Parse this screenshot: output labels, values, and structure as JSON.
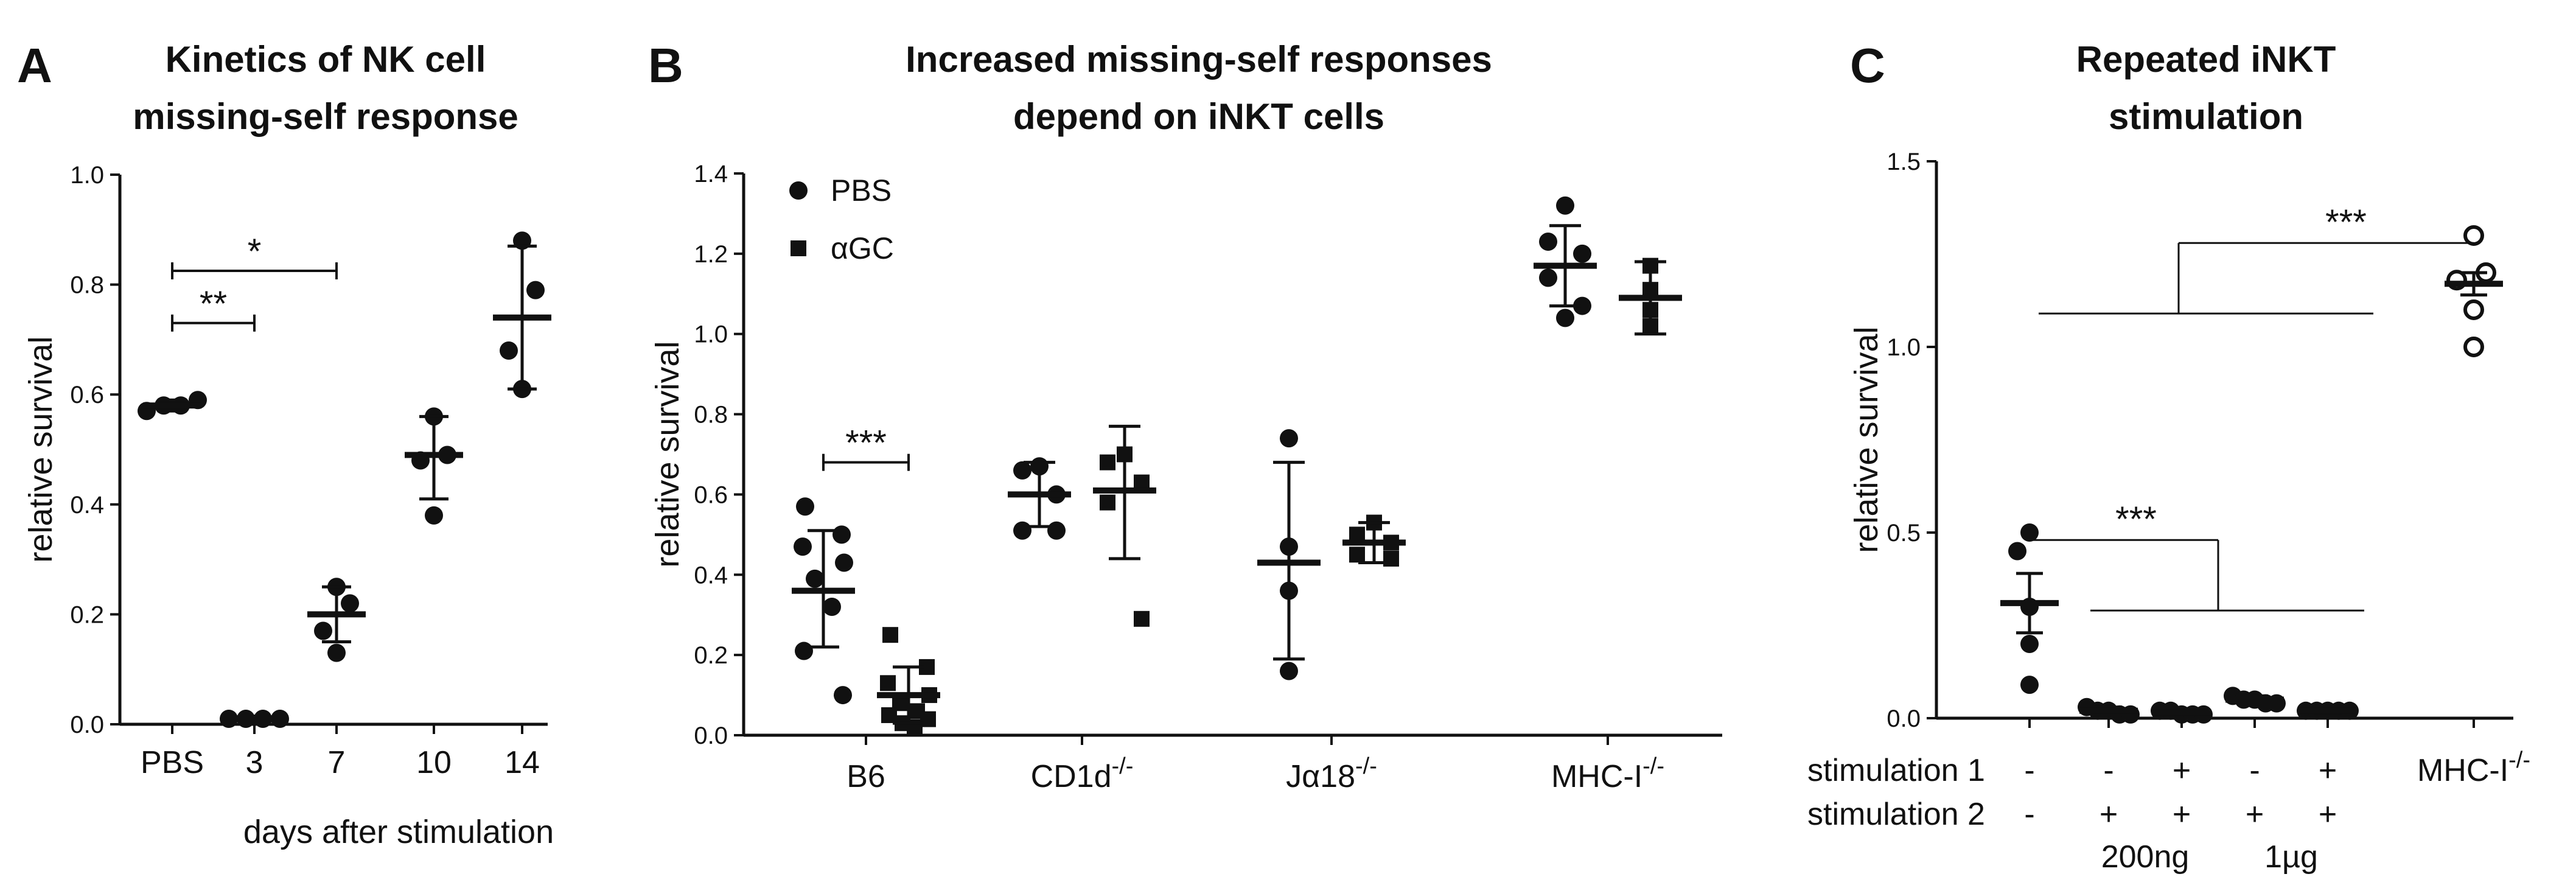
{
  "chart_data": [
    {
      "panel": "A",
      "type": "scatter",
      "title": [
        "Kinetics of NK cell",
        "missing-self response"
      ],
      "xlabel": "days after stimulation",
      "ylabel": "relative survival",
      "ylim": [
        0,
        1.0
      ],
      "yticks": [
        "0.0",
        "0.2",
        "0.4",
        "0.6",
        "0.8",
        "1.0"
      ],
      "categories": [
        "PBS",
        "3",
        "7",
        "10",
        "14"
      ],
      "series": [
        {
          "name": "PBS",
          "marker": "circle",
          "points": [
            [
              0,
              0.57
            ],
            [
              0,
              0.58
            ],
            [
              0,
              0.58
            ],
            [
              0,
              0.59
            ]
          ],
          "mean": 0.58,
          "err": [
            0.57,
            0.59
          ]
        },
        {
          "name": "3",
          "marker": "circle",
          "points": [
            [
              1,
              0.01
            ],
            [
              1,
              0.01
            ],
            [
              1,
              0.01
            ],
            [
              1,
              0.01
            ]
          ],
          "mean": 0.01,
          "err": [
            0.005,
            0.015
          ]
        },
        {
          "name": "7",
          "marker": "circle",
          "points": [
            [
              2,
              0.25
            ],
            [
              2,
              0.22
            ],
            [
              2,
              0.17
            ],
            [
              2,
              0.13
            ]
          ],
          "mean": 0.2,
          "err": [
            0.15,
            0.25
          ]
        },
        {
          "name": "10",
          "marker": "circle",
          "points": [
            [
              3,
              0.56
            ],
            [
              3,
              0.49
            ],
            [
              3,
              0.48
            ],
            [
              3,
              0.38
            ]
          ],
          "mean": 0.49,
          "err": [
            0.41,
            0.56
          ]
        },
        {
          "name": "14",
          "marker": "circle",
          "points": [
            [
              4,
              0.88
            ],
            [
              4,
              0.79
            ],
            [
              4,
              0.68
            ],
            [
              4,
              0.61
            ]
          ],
          "mean": 0.74,
          "err": [
            0.61,
            0.87
          ]
        }
      ],
      "significance": [
        {
          "from": 0,
          "to": 1,
          "y": 0.73,
          "label": "**"
        },
        {
          "from": 0,
          "to": 2,
          "y": 0.825,
          "label": "*"
        }
      ]
    },
    {
      "panel": "B",
      "type": "scatter",
      "title": [
        "Increased missing-self responses",
        "depend on iNKT cells"
      ],
      "ylabel": "relative survival",
      "ylim": [
        0,
        1.4
      ],
      "yticks": [
        "0.0",
        "0.2",
        "0.4",
        "0.6",
        "0.8",
        "1.0",
        "1.2",
        "1.4"
      ],
      "legend": [
        {
          "label": "PBS",
          "marker": "circle"
        },
        {
          "label": "αGC",
          "marker": "square"
        }
      ],
      "categories": [
        {
          "name": "B6",
          "sup": ""
        },
        {
          "name": "CD1d",
          "sup": "-/-"
        },
        {
          "name": "Jα18",
          "sup": "-/-"
        },
        {
          "name": "MHC-I",
          "sup": "-/-"
        }
      ],
      "series": [
        {
          "name": "PBS",
          "group": 0,
          "marker": "circle",
          "points": [
            0.57,
            0.5,
            0.47,
            0.43,
            0.39,
            0.32,
            0.21,
            0.1
          ],
          "mean": 0.36,
          "err": [
            0.22,
            0.51
          ]
        },
        {
          "name": "αGC",
          "group": 0,
          "marker": "square",
          "points": [
            0.25,
            0.17,
            0.13,
            0.1,
            0.08,
            0.06,
            0.05,
            0.04,
            0.03,
            0.02
          ],
          "mean": 0.1,
          "err": [
            0.03,
            0.17
          ]
        },
        {
          "name": "PBS",
          "group": 1,
          "marker": "circle",
          "points": [
            0.67,
            0.66,
            0.6,
            0.51,
            0.51
          ],
          "mean": 0.6,
          "err": [
            0.52,
            0.68
          ]
        },
        {
          "name": "αGC",
          "group": 1,
          "marker": "square",
          "points": [
            0.7,
            0.68,
            0.63,
            0.58,
            0.29
          ],
          "mean": 0.61,
          "err": [
            0.44,
            0.77
          ]
        },
        {
          "name": "PBS",
          "group": 2,
          "marker": "circle",
          "points": [
            0.74,
            0.47,
            0.36,
            0.16
          ],
          "mean": 0.43,
          "err": [
            0.19,
            0.68
          ]
        },
        {
          "name": "αGC",
          "group": 2,
          "marker": "square",
          "points": [
            0.53,
            0.5,
            0.48,
            0.45,
            0.44
          ],
          "mean": 0.48,
          "err": [
            0.43,
            0.53
          ]
        },
        {
          "name": "PBS",
          "group": 3,
          "marker": "circle",
          "points": [
            1.32,
            1.23,
            1.2,
            1.14,
            1.07,
            1.04
          ],
          "mean": 1.17,
          "err": [
            1.07,
            1.27
          ]
        },
        {
          "name": "αGC",
          "group": 3,
          "marker": "square",
          "points": [
            1.17,
            1.11,
            1.06,
            1.02
          ],
          "mean": 1.09,
          "err": [
            1.0,
            1.18
          ]
        }
      ],
      "significance": [
        {
          "group": 0,
          "y": 0.68,
          "label": "***"
        }
      ]
    },
    {
      "panel": "C",
      "type": "scatter",
      "title": [
        "Repeated iNKT",
        "stimulation"
      ],
      "ylabel": "relative survival",
      "ylim": [
        0,
        1.5
      ],
      "yticks": [
        "0.0",
        "0.5",
        "1.0",
        "1.5"
      ],
      "row_labels": [
        "stimulation 1",
        "stimulation 2"
      ],
      "stimulation_1": [
        "-",
        "-",
        "+",
        "-",
        "+"
      ],
      "stimulation_2": [
        "-",
        "+",
        "+",
        "+",
        "+"
      ],
      "dose_labels": [
        "200ng",
        "1µg"
      ],
      "last_category": {
        "name": "MHC-I",
        "sup": "-/-"
      },
      "series": [
        {
          "group": 0,
          "marker": "filled",
          "points": [
            0.5,
            0.45,
            0.3,
            0.2,
            0.09
          ],
          "mean": 0.31,
          "err": [
            0.23,
            0.39
          ]
        },
        {
          "group": 1,
          "marker": "filled",
          "points": [
            0.03,
            0.02,
            0.02,
            0.01,
            0.01
          ],
          "mean": 0.02,
          "err": [
            0.01,
            0.03
          ]
        },
        {
          "group": 2,
          "marker": "filled",
          "points": [
            0.02,
            0.02,
            0.01,
            0.01,
            0.01
          ],
          "mean": 0.015,
          "err": [
            0.01,
            0.02
          ]
        },
        {
          "group": 3,
          "marker": "filled",
          "points": [
            0.06,
            0.05,
            0.05,
            0.04,
            0.04
          ],
          "mean": 0.05,
          "err": [
            0.04,
            0.06
          ]
        },
        {
          "group": 4,
          "marker": "filled",
          "points": [
            0.02,
            0.02,
            0.02,
            0.02,
            0.02
          ],
          "mean": 0.02,
          "err": [
            0.015,
            0.025
          ]
        },
        {
          "group": 5,
          "marker": "open",
          "points": [
            1.3,
            1.2,
            1.18,
            1.1,
            1.0
          ],
          "mean": 1.17,
          "err": [
            1.14,
            1.2
          ]
        }
      ],
      "significance": [
        {
          "label": "***",
          "from": 0,
          "to_range": [
            1,
            4
          ],
          "y_top": 0.48,
          "y_low": 0.29
        },
        {
          "label": "***",
          "from_range": [
            0,
            4
          ],
          "to": 5,
          "y_top": 1.28,
          "y_low": 1.09
        }
      ]
    }
  ]
}
